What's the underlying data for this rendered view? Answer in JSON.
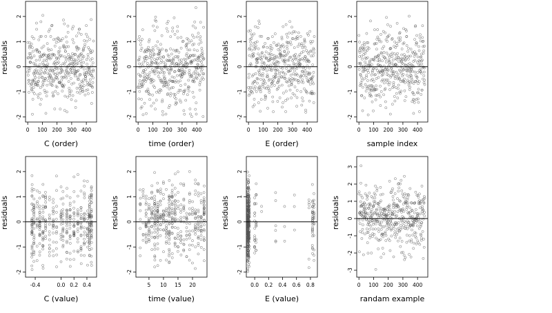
{
  "chart_data": [
    {
      "type": "scatter",
      "xlabel": "C (order)",
      "ylabel": "residuals",
      "xlim": [
        -15,
        470
      ],
      "ylim": [
        -2.2,
        2.6
      ],
      "xticks": [
        0,
        100,
        200,
        300,
        400
      ],
      "xtick_labels": [
        "0",
        "100",
        "200",
        "300",
        "400"
      ],
      "yticks": [
        -2,
        -1,
        0,
        1,
        2
      ],
      "ytick_labels": [
        "-2",
        "-1",
        "0",
        "1",
        "2"
      ],
      "hline": 0,
      "n_points": 450,
      "spread": 0.75,
      "seed": 11,
      "x_kind": "index",
      "grid": false
    },
    {
      "type": "scatter",
      "xlabel": "time (order)",
      "ylabel": "residuals",
      "xlim": [
        -15,
        470
      ],
      "ylim": [
        -2.2,
        2.6
      ],
      "xticks": [
        0,
        100,
        200,
        300,
        400
      ],
      "xtick_labels": [
        "0",
        "100",
        "200",
        "300",
        "400"
      ],
      "yticks": [
        -2,
        -1,
        0,
        1,
        2
      ],
      "ytick_labels": [
        "-2",
        "-1",
        "0",
        "1",
        "2"
      ],
      "hline": 0,
      "n_points": 450,
      "spread": 0.75,
      "seed": 23,
      "x_kind": "index",
      "grid": false
    },
    {
      "type": "scatter",
      "xlabel": "E (order)",
      "ylabel": "residuals",
      "xlim": [
        -15,
        470
      ],
      "ylim": [
        -2.2,
        2.6
      ],
      "xticks": [
        0,
        100,
        200,
        300,
        400
      ],
      "xtick_labels": [
        "0",
        "100",
        "200",
        "300",
        "400"
      ],
      "yticks": [
        -2,
        -1,
        0,
        1,
        2
      ],
      "ytick_labels": [
        "-2",
        "-1",
        "0",
        "1",
        "2"
      ],
      "hline": 0,
      "n_points": 450,
      "spread": 0.75,
      "seed": 37,
      "x_kind": "index",
      "grid": false
    },
    {
      "type": "scatter",
      "xlabel": "sample index",
      "ylabel": "residuals",
      "xlim": [
        -15,
        470
      ],
      "ylim": [
        -2.2,
        2.6
      ],
      "xticks": [
        0,
        100,
        200,
        300,
        400
      ],
      "xtick_labels": [
        "0",
        "100",
        "200",
        "300",
        "400"
      ],
      "yticks": [
        -2,
        -1,
        0,
        1,
        2
      ],
      "ytick_labels": [
        "-2",
        "-1",
        "0",
        "1",
        "2"
      ],
      "hline": 0,
      "n_points": 450,
      "spread": 0.75,
      "seed": 41,
      "x_kind": "index",
      "grid": false
    },
    {
      "type": "scatter",
      "xlabel": "C (value)",
      "ylabel": "residuals",
      "xlim": [
        -0.55,
        0.55
      ],
      "ylim": [
        -2.2,
        2.6
      ],
      "xticks": [
        -0.4,
        0.0,
        0.2,
        0.4
      ],
      "xtick_labels": [
        "-0.4",
        "0.0",
        "0.2",
        "0.4"
      ],
      "yticks": [
        -2,
        -1,
        0,
        1,
        2
      ],
      "ytick_labels": [
        "-2",
        "-1",
        "0",
        "1",
        "2"
      ],
      "hline": 0,
      "n_points": 450,
      "spread": 0.75,
      "seed": 53,
      "x_kind": "values",
      "x_levels": [
        -0.45,
        -0.42,
        -0.37,
        -0.33,
        -0.28,
        -0.24,
        -0.18,
        -0.12,
        -0.07,
        0.0,
        0.03,
        0.09,
        0.14,
        0.2,
        0.26,
        0.31,
        0.36,
        0.41,
        0.44,
        0.47
      ],
      "x_weights": [
        5,
        3,
        2,
        2,
        2,
        2,
        2,
        2,
        1,
        2,
        2,
        2,
        2,
        2,
        2,
        2,
        2,
        2,
        4,
        5
      ],
      "grid": false
    },
    {
      "type": "scatter",
      "xlabel": "time (value)",
      "ylabel": "residuals",
      "xlim": [
        0.5,
        25
      ],
      "ylim": [
        -2.2,
        2.6
      ],
      "xticks": [
        5,
        10,
        15,
        20
      ],
      "xtick_labels": [
        "5",
        "10",
        "15",
        "20"
      ],
      "yticks": [
        -2,
        -1,
        0,
        1,
        2
      ],
      "ytick_labels": [
        "-2",
        "-1",
        "0",
        "1",
        "2"
      ],
      "hline": 0,
      "n_points": 450,
      "spread": 0.75,
      "seed": 67,
      "x_kind": "values",
      "x_levels": [
        2,
        3,
        4,
        5,
        6,
        7,
        8,
        9,
        10,
        11,
        12,
        13,
        14,
        15,
        16,
        17,
        18,
        19,
        20,
        21,
        22,
        23,
        24
      ],
      "x_weights": [
        1,
        1,
        2,
        2,
        2,
        3,
        3,
        2,
        2,
        2,
        4,
        2,
        2,
        2,
        2,
        2,
        2,
        2,
        2,
        2,
        2,
        2,
        3
      ],
      "grid": false
    },
    {
      "type": "scatter",
      "xlabel": "E (value)",
      "ylabel": "residuals",
      "xlim": [
        -0.12,
        0.9
      ],
      "ylim": [
        -2.2,
        2.6
      ],
      "xticks": [
        0.0,
        0.2,
        0.4,
        0.6,
        0.8
      ],
      "xtick_labels": [
        "0.0",
        "0.2",
        "0.4",
        "0.6",
        "0.8"
      ],
      "yticks": [
        -2,
        -1,
        0,
        1,
        2
      ],
      "ytick_labels": [
        "-2",
        "-1",
        "0",
        "1",
        "2"
      ],
      "hline": 0,
      "n_points": 450,
      "spread": 0.75,
      "seed": 79,
      "x_kind": "values",
      "x_levels": [
        -0.1,
        -0.09,
        -0.08,
        0.0,
        0.02,
        0.1,
        0.3,
        0.43,
        0.57,
        0.78,
        0.83,
        0.85
      ],
      "x_weights": [
        60,
        40,
        20,
        3,
        3,
        2,
        1,
        1,
        1,
        2,
        9,
        6
      ],
      "grid": false
    },
    {
      "type": "scatter",
      "xlabel": "randam example",
      "ylabel": "residuals",
      "xlim": [
        -15,
        470
      ],
      "ylim": [
        -3.4,
        3.6
      ],
      "xticks": [
        0,
        100,
        200,
        300,
        400
      ],
      "xtick_labels": [
        "0",
        "100",
        "200",
        "300",
        "400"
      ],
      "yticks": [
        -3,
        -2,
        -1,
        0,
        1,
        2,
        3
      ],
      "ytick_labels": [
        "-3",
        "-2",
        "-1",
        "0",
        "1",
        "2",
        "3"
      ],
      "hline": 0,
      "n_points": 450,
      "spread": 1.0,
      "seed": 97,
      "x_kind": "index",
      "grid": false
    }
  ]
}
